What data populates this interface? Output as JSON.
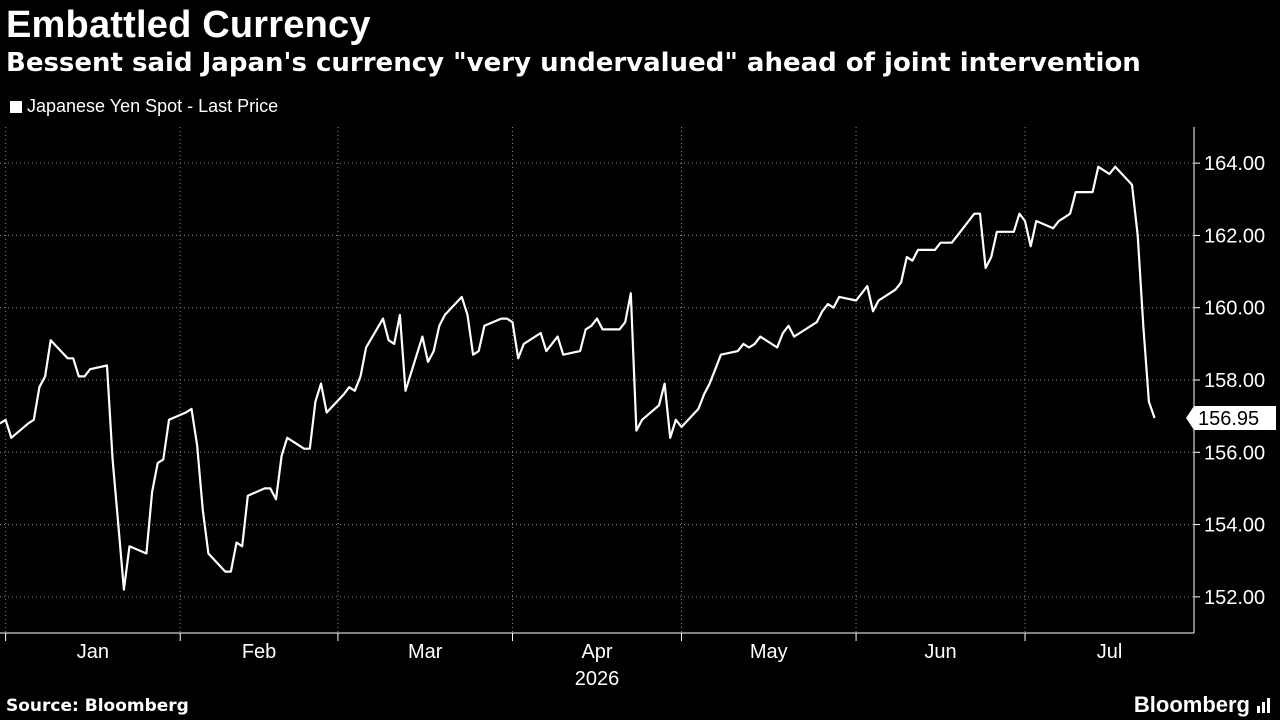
{
  "header": {
    "title": "Embattled Currency",
    "subtitle": "Bessent said Japan's currency \"very undervalued\" ahead of joint intervention"
  },
  "legend": {
    "label": "Japanese Yen Spot - Last Price"
  },
  "footer": {
    "source": "Source: Bloomberg",
    "brand": "Bloomberg"
  },
  "colors": {
    "background": "#000000",
    "line": "#ffffff",
    "grid": "#888888"
  },
  "chart_data": {
    "type": "line",
    "title": "Embattled Currency",
    "subtitle": "Bessent said Japan's currency \"very undervalued\" ahead of joint intervention",
    "xlabel": "2026",
    "ylabel": "",
    "x_tick_labels": [
      "Jan",
      "Feb",
      "Mar",
      "Apr",
      "May",
      "Jun",
      "Jul"
    ],
    "year_label": "2026",
    "y_ticks": [
      152,
      154,
      156,
      158,
      160,
      162,
      164
    ],
    "y_tick_labels": [
      "152.00",
      "154.00",
      "156.00",
      "158.00",
      "160.00",
      "162.00",
      "164.00"
    ],
    "ylim": [
      151,
      165
    ],
    "xlim": [
      "2025-12-31",
      "2026-07-31"
    ],
    "grid": true,
    "last_value": 156.95,
    "last_value_label": "156.95",
    "series": [
      {
        "name": "Japanese Yen Spot - Last Price",
        "points": [
          [
            "2025-12-31",
            156.8
          ],
          [
            "2026-01-01",
            156.9
          ],
          [
            "2026-01-02",
            156.4
          ],
          [
            "2026-01-05",
            156.8
          ],
          [
            "2026-01-06",
            156.9
          ],
          [
            "2026-01-07",
            157.8
          ],
          [
            "2026-01-08",
            158.1
          ],
          [
            "2026-01-09",
            159.1
          ],
          [
            "2026-01-12",
            158.6
          ],
          [
            "2026-01-13",
            158.6
          ],
          [
            "2026-01-14",
            158.1
          ],
          [
            "2026-01-15",
            158.1
          ],
          [
            "2026-01-16",
            158.3
          ],
          [
            "2026-01-19",
            158.4
          ],
          [
            "2026-01-20",
            155.8
          ],
          [
            "2026-01-21",
            154.0
          ],
          [
            "2026-01-22",
            152.2
          ],
          [
            "2026-01-23",
            153.4
          ],
          [
            "2026-01-26",
            153.2
          ],
          [
            "2026-01-27",
            154.9
          ],
          [
            "2026-01-28",
            155.7
          ],
          [
            "2026-01-29",
            155.8
          ],
          [
            "2026-01-30",
            156.9
          ],
          [
            "2026-02-02",
            157.1
          ],
          [
            "2026-02-03",
            157.2
          ],
          [
            "2026-02-04",
            156.2
          ],
          [
            "2026-02-05",
            154.4
          ],
          [
            "2026-02-06",
            153.2
          ],
          [
            "2026-02-09",
            152.7
          ],
          [
            "2026-02-10",
            152.7
          ],
          [
            "2026-02-11",
            153.5
          ],
          [
            "2026-02-12",
            153.4
          ],
          [
            "2026-02-13",
            154.8
          ],
          [
            "2026-02-16",
            155.0
          ],
          [
            "2026-02-17",
            155.0
          ],
          [
            "2026-02-18",
            154.7
          ],
          [
            "2026-02-19",
            155.9
          ],
          [
            "2026-02-20",
            156.4
          ],
          [
            "2026-02-23",
            156.1
          ],
          [
            "2026-02-24",
            156.1
          ],
          [
            "2026-02-25",
            157.4
          ],
          [
            "2026-02-26",
            157.9
          ],
          [
            "2026-02-27",
            157.1
          ],
          [
            "2026-03-02",
            157.6
          ],
          [
            "2026-03-03",
            157.8
          ],
          [
            "2026-03-04",
            157.7
          ],
          [
            "2026-03-05",
            158.1
          ],
          [
            "2026-03-06",
            158.9
          ],
          [
            "2026-03-09",
            159.7
          ],
          [
            "2026-03-10",
            159.1
          ],
          [
            "2026-03-11",
            159.0
          ],
          [
            "2026-03-12",
            159.8
          ],
          [
            "2026-03-13",
            157.7
          ],
          [
            "2026-03-16",
            159.2
          ],
          [
            "2026-03-17",
            158.5
          ],
          [
            "2026-03-18",
            158.8
          ],
          [
            "2026-03-19",
            159.5
          ],
          [
            "2026-03-20",
            159.8
          ],
          [
            "2026-03-23",
            160.3
          ],
          [
            "2026-03-24",
            159.8
          ],
          [
            "2026-03-25",
            158.7
          ],
          [
            "2026-03-26",
            158.8
          ],
          [
            "2026-03-27",
            159.5
          ],
          [
            "2026-03-30",
            159.7
          ],
          [
            "2026-03-31",
            159.7
          ],
          [
            "2026-04-01",
            159.6
          ],
          [
            "2026-04-02",
            158.6
          ],
          [
            "2026-04-03",
            159.0
          ],
          [
            "2026-04-06",
            159.3
          ],
          [
            "2026-04-07",
            158.8
          ],
          [
            "2026-04-08",
            159.0
          ],
          [
            "2026-04-09",
            159.2
          ],
          [
            "2026-04-10",
            158.7
          ],
          [
            "2026-04-13",
            158.8
          ],
          [
            "2026-04-14",
            159.4
          ],
          [
            "2026-04-15",
            159.5
          ],
          [
            "2026-04-16",
            159.7
          ],
          [
            "2026-04-17",
            159.4
          ],
          [
            "2026-04-20",
            159.4
          ],
          [
            "2026-04-21",
            159.6
          ],
          [
            "2026-04-22",
            160.4
          ],
          [
            "2026-04-23",
            156.6
          ],
          [
            "2026-04-24",
            156.9
          ],
          [
            "2026-04-27",
            157.3
          ],
          [
            "2026-04-28",
            157.9
          ],
          [
            "2026-04-29",
            156.4
          ],
          [
            "2026-04-30",
            156.9
          ],
          [
            "2026-05-01",
            156.7
          ],
          [
            "2026-05-04",
            157.2
          ],
          [
            "2026-05-05",
            157.6
          ],
          [
            "2026-05-06",
            157.9
          ],
          [
            "2026-05-07",
            158.3
          ],
          [
            "2026-05-08",
            158.7
          ],
          [
            "2026-05-11",
            158.8
          ],
          [
            "2026-05-12",
            159.0
          ],
          [
            "2026-05-13",
            158.9
          ],
          [
            "2026-05-14",
            159.0
          ],
          [
            "2026-05-15",
            159.2
          ],
          [
            "2026-05-18",
            158.9
          ],
          [
            "2026-05-19",
            159.3
          ],
          [
            "2026-05-20",
            159.5
          ],
          [
            "2026-05-21",
            159.2
          ],
          [
            "2026-05-22",
            159.3
          ],
          [
            "2026-05-25",
            159.6
          ],
          [
            "2026-05-26",
            159.9
          ],
          [
            "2026-05-27",
            160.1
          ],
          [
            "2026-05-28",
            160.0
          ],
          [
            "2026-05-29",
            160.3
          ],
          [
            "2026-06-01",
            160.2
          ],
          [
            "2026-06-02",
            160.4
          ],
          [
            "2026-06-03",
            160.6
          ],
          [
            "2026-06-04",
            159.9
          ],
          [
            "2026-06-05",
            160.2
          ],
          [
            "2026-06-08",
            160.5
          ],
          [
            "2026-06-09",
            160.7
          ],
          [
            "2026-06-10",
            161.4
          ],
          [
            "2026-06-11",
            161.3
          ],
          [
            "2026-06-12",
            161.6
          ],
          [
            "2026-06-15",
            161.6
          ],
          [
            "2026-06-16",
            161.8
          ],
          [
            "2026-06-17",
            161.8
          ],
          [
            "2026-06-18",
            161.8
          ],
          [
            "2026-06-19",
            162.0
          ],
          [
            "2026-06-22",
            162.6
          ],
          [
            "2026-06-23",
            162.6
          ],
          [
            "2026-06-24",
            161.1
          ],
          [
            "2026-06-25",
            161.4
          ],
          [
            "2026-06-26",
            162.1
          ],
          [
            "2026-06-29",
            162.1
          ],
          [
            "2026-06-30",
            162.6
          ],
          [
            "2026-07-01",
            162.4
          ],
          [
            "2026-07-02",
            161.7
          ],
          [
            "2026-07-03",
            162.4
          ],
          [
            "2026-07-06",
            162.2
          ],
          [
            "2026-07-07",
            162.4
          ],
          [
            "2026-07-08",
            162.5
          ],
          [
            "2026-07-09",
            162.6
          ],
          [
            "2026-07-10",
            163.2
          ],
          [
            "2026-07-13",
            163.2
          ],
          [
            "2026-07-14",
            163.9
          ],
          [
            "2026-07-15",
            163.8
          ],
          [
            "2026-07-16",
            163.7
          ],
          [
            "2026-07-17",
            163.9
          ],
          [
            "2026-07-20",
            163.4
          ],
          [
            "2026-07-21",
            162.0
          ],
          [
            "2026-07-22",
            159.5
          ],
          [
            "2026-07-23",
            157.4
          ],
          [
            "2026-07-24",
            156.95
          ]
        ]
      }
    ]
  }
}
